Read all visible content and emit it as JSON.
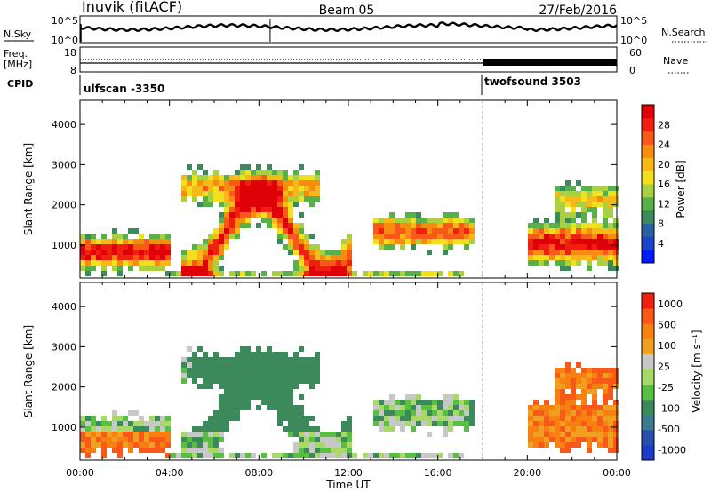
{
  "header": {
    "station": "Inuvik (fitACF)",
    "beam": "Beam 05",
    "date": "27/Feb/2016"
  },
  "top_panels": {
    "nsky_label": "N.Sky",
    "nsearch_label": "N.Search",
    "nsky_ticks": [
      "10^5",
      "10^0"
    ],
    "nsearch_ticks": [
      "10^5",
      "10^0"
    ],
    "freq_label": "Freq.",
    "freq_unit": "[MHz]",
    "freq_ticks": [
      "18",
      "8"
    ],
    "nave_label": "Nave",
    "nave_ticks": [
      "60",
      "0"
    ],
    "cpid_label": "CPID",
    "cpid_segments": [
      {
        "name": "ulfscan -3350",
        "start_hour": 0
      },
      {
        "name": "twofsound 3503",
        "start_hour": 18.0
      }
    ]
  },
  "chart_data": [
    {
      "type": "heatmap",
      "title": "",
      "xlabel": "Time UT",
      "ylabel": "Slant Range [km]",
      "x_ticks": [
        "00:00",
        "04:00",
        "08:00",
        "12:00",
        "16:00",
        "20:00",
        "00:00"
      ],
      "xlim": [
        0,
        24
      ],
      "y_ticks": [
        1000,
        2000,
        3000,
        4000
      ],
      "ylim": [
        180,
        4600
      ],
      "colorbar": {
        "label": "Power [dB]",
        "ticks": [
          "4",
          "8",
          "12",
          "16",
          "20",
          "24",
          "28"
        ],
        "colors": [
          "#0018ff",
          "#1c44c8",
          "#2a60a0",
          "#3c8a5c",
          "#58b048",
          "#a8d040",
          "#f0e020",
          "#f8b818",
          "#f88c10",
          "#f85818",
          "#f02010",
          "#e00008"
        ]
      },
      "field": "power"
    },
    {
      "type": "heatmap",
      "title": "",
      "xlabel": "Time UT",
      "ylabel": "Slant Range [km]",
      "x_ticks": [
        "00:00",
        "04:00",
        "08:00",
        "12:00",
        "16:00",
        "20:00",
        "00:00"
      ],
      "xlim": [
        0,
        24
      ],
      "y_ticks": [
        1000,
        2000,
        3000,
        4000
      ],
      "ylim": [
        180,
        4600
      ],
      "colorbar": {
        "label": "Velocity [m s⁻¹]",
        "ticks": [
          "1000",
          "500",
          "100",
          "25",
          "-25",
          "-100",
          "-500",
          "-1000"
        ],
        "colors": [
          "#1c3cc8",
          "#2850a8",
          "#3c7a90",
          "#3c8a5c",
          "#58c040",
          "#a8d868",
          "#c8c8c8",
          "#f0a020",
          "#f88010",
          "#f85818",
          "#f02010"
        ]
      },
      "field": "velocity"
    }
  ]
}
